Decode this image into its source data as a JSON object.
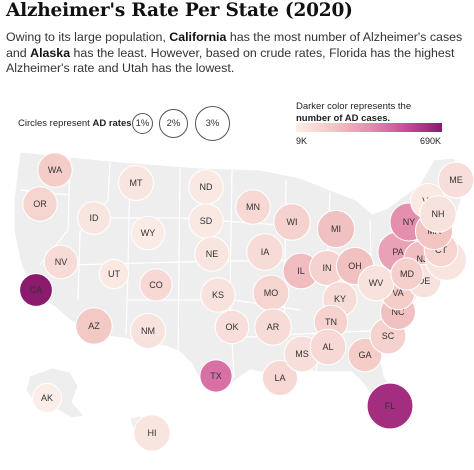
{
  "title": "Alzheimer's Rate Per State (2020)",
  "subtitle": {
    "p1": "Owing to its large population, ",
    "b1": "California",
    "p2": " has the most number of Alzheimer's cases and ",
    "b2": "Alaska",
    "p3": " has the least. However, based on crude rates, Florida has the highest Alzheimer's rate and Utah has the lowest."
  },
  "size_legend": {
    "label_prefix": "Circles represent ",
    "label_bold": "AD rates",
    "items": [
      "1%",
      "2%",
      "3%"
    ]
  },
  "color_legend": {
    "line1": "Darker color represents the",
    "line2_bold": "number of AD cases.",
    "min_label": "9K",
    "max_label": "690K"
  },
  "colors": {
    "lightest": "#fbeee9",
    "darkest": "#8a1a6c",
    "land": "#eeeeee"
  },
  "states": [
    {
      "code": "WA",
      "shade": 0.22,
      "rate": 1.55
    },
    {
      "code": "OR",
      "shade": 0.16,
      "rate": 1.55
    },
    {
      "code": "CA",
      "shade": 1.0,
      "rate": 1.45
    },
    {
      "code": "NV",
      "shade": 0.12,
      "rate": 1.5
    },
    {
      "code": "ID",
      "shade": 0.06,
      "rate": 1.45
    },
    {
      "code": "MT",
      "shade": 0.06,
      "rate": 1.6
    },
    {
      "code": "WY",
      "shade": 0.02,
      "rate": 1.5
    },
    {
      "code": "UT",
      "shade": 0.04,
      "rate": 1.2
    },
    {
      "code": "AZ",
      "shade": 0.24,
      "rate": 1.7
    },
    {
      "code": "CO",
      "shade": 0.14,
      "rate": 1.4
    },
    {
      "code": "NM",
      "shade": 0.08,
      "rate": 1.6
    },
    {
      "code": "ND",
      "shade": 0.04,
      "rate": 1.55
    },
    {
      "code": "SD",
      "shade": 0.04,
      "rate": 1.55
    },
    {
      "code": "NE",
      "shade": 0.06,
      "rate": 1.55
    },
    {
      "code": "KS",
      "shade": 0.08,
      "rate": 1.55
    },
    {
      "code": "OK",
      "shade": 0.1,
      "rate": 1.5
    },
    {
      "code": "TX",
      "shade": 0.62,
      "rate": 1.4
    },
    {
      "code": "MN",
      "shade": 0.14,
      "rate": 1.55
    },
    {
      "code": "IA",
      "shade": 0.12,
      "rate": 1.7
    },
    {
      "code": "MO",
      "shade": 0.16,
      "rate": 1.65
    },
    {
      "code": "AR",
      "shade": 0.12,
      "rate": 1.7
    },
    {
      "code": "LA",
      "shade": 0.14,
      "rate": 1.6
    },
    {
      "code": "WI",
      "shade": 0.18,
      "rate": 1.7
    },
    {
      "code": "IL",
      "shade": 0.3,
      "rate": 1.65
    },
    {
      "code": "MI",
      "shade": 0.28,
      "rate": 1.75
    },
    {
      "code": "IN",
      "shade": 0.18,
      "rate": 1.6
    },
    {
      "code": "OH",
      "shade": 0.28,
      "rate": 1.75
    },
    {
      "code": "KY",
      "shade": 0.12,
      "rate": 1.55
    },
    {
      "code": "TN",
      "shade": 0.18,
      "rate": 1.5
    },
    {
      "code": "MS",
      "shade": 0.1,
      "rate": 1.65
    },
    {
      "code": "AL",
      "shade": 0.14,
      "rate": 1.65
    },
    {
      "code": "GA",
      "shade": 0.22,
      "rate": 1.5
    },
    {
      "code": "FL",
      "shade": 0.9,
      "rate": 2.35
    },
    {
      "code": "SC",
      "shade": 0.18,
      "rate": 1.65
    },
    {
      "code": "NC",
      "shade": 0.28,
      "rate": 1.6
    },
    {
      "code": "VA",
      "shade": 0.22,
      "rate": 1.5
    },
    {
      "code": "WV",
      "shade": 0.08,
      "rate": 1.65
    },
    {
      "code": "PA",
      "shade": 0.42,
      "rate": 1.95
    },
    {
      "code": "NY",
      "shade": 0.5,
      "rate": 1.8
    },
    {
      "code": "NJ",
      "shade": 0.3,
      "rate": 1.7
    },
    {
      "code": "DE",
      "shade": 0.08,
      "rate": 1.5
    },
    {
      "code": "MD",
      "shade": 0.2,
      "rate": 1.4
    },
    {
      "code": "RI",
      "shade": 0.06,
      "rate": 2.0
    },
    {
      "code": "CT",
      "shade": 0.16,
      "rate": 1.5
    },
    {
      "code": "MA",
      "shade": 0.26,
      "rate": 1.75
    },
    {
      "code": "VT",
      "shade": 0.04,
      "rate": 1.6
    },
    {
      "code": "NH",
      "shade": 0.08,
      "rate": 1.7
    },
    {
      "code": "ME",
      "shade": 0.1,
      "rate": 1.65
    },
    {
      "code": "AK",
      "shade": 0.0,
      "rate": 1.2
    },
    {
      "code": "HI",
      "shade": 0.06,
      "rate": 1.7
    }
  ]
}
